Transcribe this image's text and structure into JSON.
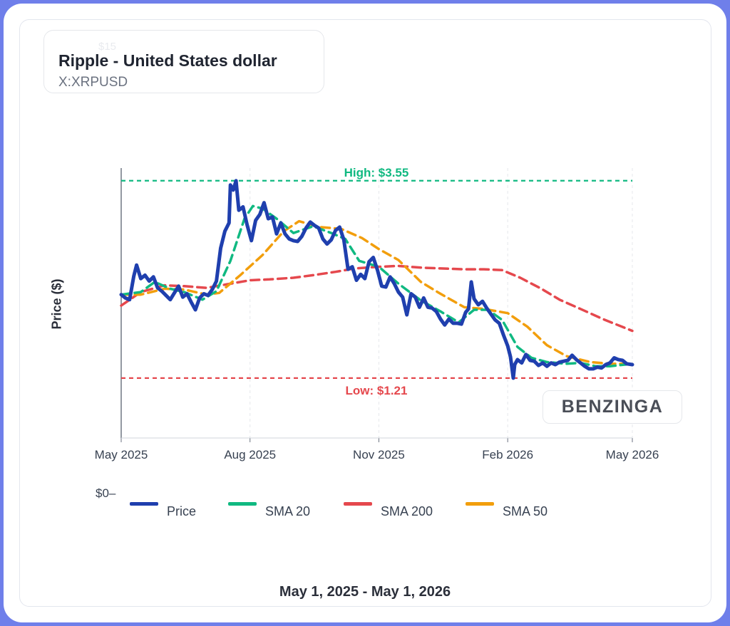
{
  "header": {
    "title": "Ripple - United States dollar",
    "ticker": "X:XRPUSD",
    "ghost_label": "$15"
  },
  "watermark": "BENZINGA",
  "date_range": "May 1, 2025 - May 1, 2026",
  "zero_tick": "$0",
  "colors": {
    "price": "#1f3fae",
    "sma20": "#10b981",
    "sma200": "#e5484d",
    "sma50": "#f29e0c",
    "high": "#10b981",
    "low": "#e5484d"
  },
  "chart_data": {
    "type": "line",
    "ylabel": "Price ($)",
    "xlabel": "",
    "x_ticks": [
      "May 2025",
      "Aug 2025",
      "Nov 2025",
      "Feb 2026",
      "May 2026"
    ],
    "x_range": [
      "2025-05-01",
      "2026-05-01"
    ],
    "ylim": [
      0.5,
      3.7
    ],
    "grid": true,
    "legend_placement": "bottom",
    "annotations": {
      "high": {
        "label": "High: $3.55",
        "value": 3.55
      },
      "low": {
        "label": "Low: $1.21",
        "value": 1.21
      }
    },
    "series": [
      {
        "name": "Price",
        "key": "price",
        "dashed": false,
        "points": [
          [
            "2025-05-01",
            2.2
          ],
          [
            "2025-05-04",
            2.16
          ],
          [
            "2025-05-07",
            2.14
          ],
          [
            "2025-05-10",
            2.42
          ],
          [
            "2025-05-12",
            2.55
          ],
          [
            "2025-05-15",
            2.39
          ],
          [
            "2025-05-18",
            2.43
          ],
          [
            "2025-05-21",
            2.36
          ],
          [
            "2025-05-24",
            2.41
          ],
          [
            "2025-05-27",
            2.28
          ],
          [
            "2025-05-30",
            2.24
          ],
          [
            "2025-06-02",
            2.19
          ],
          [
            "2025-06-05",
            2.14
          ],
          [
            "2025-06-08",
            2.22
          ],
          [
            "2025-06-11",
            2.3
          ],
          [
            "2025-06-14",
            2.17
          ],
          [
            "2025-06-17",
            2.21
          ],
          [
            "2025-06-20",
            2.11
          ],
          [
            "2025-06-23",
            2.02
          ],
          [
            "2025-06-26",
            2.16
          ],
          [
            "2025-06-29",
            2.21
          ],
          [
            "2025-07-02",
            2.19
          ],
          [
            "2025-07-05",
            2.26
          ],
          [
            "2025-07-08",
            2.36
          ],
          [
            "2025-07-11",
            2.75
          ],
          [
            "2025-07-14",
            2.95
          ],
          [
            "2025-07-17",
            3.05
          ],
          [
            "2025-07-18",
            3.5
          ],
          [
            "2025-07-20",
            3.44
          ],
          [
            "2025-07-22",
            3.55
          ],
          [
            "2025-07-24",
            3.2
          ],
          [
            "2025-07-27",
            3.24
          ],
          [
            "2025-07-30",
            3.02
          ],
          [
            "2025-08-02",
            2.84
          ],
          [
            "2025-08-05",
            3.08
          ],
          [
            "2025-08-08",
            3.15
          ],
          [
            "2025-08-11",
            3.29
          ],
          [
            "2025-08-14",
            3.1
          ],
          [
            "2025-08-17",
            3.12
          ],
          [
            "2025-08-20",
            2.92
          ],
          [
            "2025-08-23",
            3.05
          ],
          [
            "2025-08-26",
            2.92
          ],
          [
            "2025-08-29",
            2.86
          ],
          [
            "2025-09-01",
            2.84
          ],
          [
            "2025-09-04",
            2.83
          ],
          [
            "2025-09-07",
            2.89
          ],
          [
            "2025-09-10",
            2.99
          ],
          [
            "2025-09-13",
            3.06
          ],
          [
            "2025-09-16",
            3.02
          ],
          [
            "2025-09-19",
            2.99
          ],
          [
            "2025-09-22",
            2.86
          ],
          [
            "2025-09-25",
            2.8
          ],
          [
            "2025-09-28",
            2.85
          ],
          [
            "2025-10-01",
            2.96
          ],
          [
            "2025-10-04",
            3.0
          ],
          [
            "2025-10-07",
            2.85
          ],
          [
            "2025-10-10",
            2.5
          ],
          [
            "2025-10-13",
            2.53
          ],
          [
            "2025-10-16",
            2.37
          ],
          [
            "2025-10-19",
            2.44
          ],
          [
            "2025-10-22",
            2.39
          ],
          [
            "2025-10-25",
            2.59
          ],
          [
            "2025-10-28",
            2.64
          ],
          [
            "2025-10-31",
            2.49
          ],
          [
            "2025-11-03",
            2.3
          ],
          [
            "2025-11-06",
            2.29
          ],
          [
            "2025-11-09",
            2.41
          ],
          [
            "2025-11-12",
            2.33
          ],
          [
            "2025-11-15",
            2.23
          ],
          [
            "2025-11-18",
            2.17
          ],
          [
            "2025-11-21",
            1.96
          ],
          [
            "2025-11-24",
            2.21
          ],
          [
            "2025-11-27",
            2.17
          ],
          [
            "2025-11-30",
            2.05
          ],
          [
            "2025-12-03",
            2.16
          ],
          [
            "2025-12-06",
            2.05
          ],
          [
            "2025-12-09",
            2.04
          ],
          [
            "2025-12-12",
            2.0
          ],
          [
            "2025-12-15",
            1.91
          ],
          [
            "2025-12-18",
            1.84
          ],
          [
            "2025-12-21",
            1.91
          ],
          [
            "2025-12-24",
            1.86
          ],
          [
            "2025-12-27",
            1.86
          ],
          [
            "2025-12-30",
            1.85
          ],
          [
            "2026-01-02",
            1.99
          ],
          [
            "2026-01-04",
            2.03
          ],
          [
            "2026-01-06",
            2.35
          ],
          [
            "2026-01-08",
            2.15
          ],
          [
            "2026-01-11",
            2.08
          ],
          [
            "2026-01-14",
            2.12
          ],
          [
            "2026-01-17",
            2.04
          ],
          [
            "2026-01-20",
            1.97
          ],
          [
            "2026-01-23",
            1.9
          ],
          [
            "2026-01-26",
            1.86
          ],
          [
            "2026-01-29",
            1.72
          ],
          [
            "2026-02-01",
            1.59
          ],
          [
            "2026-02-03",
            1.46
          ],
          [
            "2026-02-05",
            1.21
          ],
          [
            "2026-02-06",
            1.37
          ],
          [
            "2026-02-08",
            1.43
          ],
          [
            "2026-02-11",
            1.39
          ],
          [
            "2026-02-14",
            1.49
          ],
          [
            "2026-02-17",
            1.42
          ],
          [
            "2026-02-20",
            1.41
          ],
          [
            "2026-02-23",
            1.36
          ],
          [
            "2026-02-26",
            1.39
          ],
          [
            "2026-03-01",
            1.35
          ],
          [
            "2026-03-04",
            1.39
          ],
          [
            "2026-03-07",
            1.37
          ],
          [
            "2026-03-10",
            1.4
          ],
          [
            "2026-03-13",
            1.41
          ],
          [
            "2026-03-16",
            1.42
          ],
          [
            "2026-03-19",
            1.48
          ],
          [
            "2026-03-22",
            1.43
          ],
          [
            "2026-03-25",
            1.39
          ],
          [
            "2026-03-28",
            1.35
          ],
          [
            "2026-03-31",
            1.32
          ],
          [
            "2026-04-03",
            1.32
          ],
          [
            "2026-04-06",
            1.34
          ],
          [
            "2026-04-09",
            1.33
          ],
          [
            "2026-04-12",
            1.37
          ],
          [
            "2026-04-15",
            1.39
          ],
          [
            "2026-04-18",
            1.45
          ],
          [
            "2026-04-21",
            1.43
          ],
          [
            "2026-04-24",
            1.42
          ],
          [
            "2026-04-27",
            1.38
          ],
          [
            "2026-05-01",
            1.37
          ]
        ]
      },
      {
        "name": "SMA 20",
        "key": "sma20",
        "dashed": true,
        "points": [
          [
            "2025-05-01",
            2.2
          ],
          [
            "2025-05-15",
            2.23
          ],
          [
            "2025-05-25",
            2.35
          ],
          [
            "2025-06-05",
            2.27
          ],
          [
            "2025-06-15",
            2.23
          ],
          [
            "2025-06-28",
            2.14
          ],
          [
            "2025-07-08",
            2.24
          ],
          [
            "2025-07-18",
            2.6
          ],
          [
            "2025-07-28",
            3.1
          ],
          [
            "2025-08-03",
            3.25
          ],
          [
            "2025-08-10",
            3.22
          ],
          [
            "2025-08-20",
            3.1
          ],
          [
            "2025-09-01",
            2.93
          ],
          [
            "2025-09-15",
            3.01
          ],
          [
            "2025-09-28",
            2.93
          ],
          [
            "2025-10-08",
            2.86
          ],
          [
            "2025-10-18",
            2.6
          ],
          [
            "2025-11-01",
            2.53
          ],
          [
            "2025-11-15",
            2.33
          ],
          [
            "2025-12-01",
            2.13
          ],
          [
            "2025-12-15",
            2.0
          ],
          [
            "2025-12-28",
            1.87
          ],
          [
            "2026-01-08",
            2.02
          ],
          [
            "2026-01-18",
            2.02
          ],
          [
            "2026-01-28",
            1.9
          ],
          [
            "2026-02-08",
            1.58
          ],
          [
            "2026-02-18",
            1.45
          ],
          [
            "2026-03-01",
            1.4
          ],
          [
            "2026-03-15",
            1.38
          ],
          [
            "2026-03-25",
            1.39
          ],
          [
            "2026-04-05",
            1.35
          ],
          [
            "2026-04-15",
            1.35
          ],
          [
            "2026-05-01",
            1.38
          ]
        ]
      },
      {
        "name": "SMA 200",
        "key": "sma200",
        "dashed": true,
        "points": [
          [
            "2025-05-01",
            2.07
          ],
          [
            "2025-05-15",
            2.23
          ],
          [
            "2025-06-01",
            2.31
          ],
          [
            "2025-06-15",
            2.3
          ],
          [
            "2025-07-01",
            2.28
          ],
          [
            "2025-07-15",
            2.32
          ],
          [
            "2025-08-01",
            2.37
          ],
          [
            "2025-08-15",
            2.38
          ],
          [
            "2025-09-01",
            2.4
          ],
          [
            "2025-09-15",
            2.43
          ],
          [
            "2025-10-01",
            2.47
          ],
          [
            "2025-10-15",
            2.51
          ],
          [
            "2025-11-01",
            2.53
          ],
          [
            "2025-11-15",
            2.54
          ],
          [
            "2025-12-01",
            2.52
          ],
          [
            "2025-12-15",
            2.51
          ],
          [
            "2026-01-01",
            2.5
          ],
          [
            "2026-01-15",
            2.5
          ],
          [
            "2026-01-28",
            2.49
          ],
          [
            "2026-02-10",
            2.4
          ],
          [
            "2026-02-25",
            2.27
          ],
          [
            "2026-03-10",
            2.14
          ],
          [
            "2026-03-25",
            2.03
          ],
          [
            "2026-04-10",
            1.91
          ],
          [
            "2026-05-01",
            1.77
          ]
        ]
      },
      {
        "name": "SMA 50",
        "key": "sma50",
        "dashed": true,
        "points": [
          [
            "2025-05-01",
            2.2
          ],
          [
            "2025-05-15",
            2.2
          ],
          [
            "2025-06-01",
            2.27
          ],
          [
            "2025-06-15",
            2.26
          ],
          [
            "2025-07-01",
            2.2
          ],
          [
            "2025-07-10",
            2.22
          ],
          [
            "2025-07-25",
            2.43
          ],
          [
            "2025-08-10",
            2.67
          ],
          [
            "2025-08-25",
            2.95
          ],
          [
            "2025-09-05",
            3.07
          ],
          [
            "2025-09-20",
            3.0
          ],
          [
            "2025-10-05",
            2.98
          ],
          [
            "2025-10-20",
            2.87
          ],
          [
            "2025-11-01",
            2.74
          ],
          [
            "2025-11-15",
            2.61
          ],
          [
            "2025-12-01",
            2.35
          ],
          [
            "2025-12-15",
            2.21
          ],
          [
            "2026-01-01",
            2.05
          ],
          [
            "2026-01-15",
            2.03
          ],
          [
            "2026-02-01",
            1.98
          ],
          [
            "2026-02-15",
            1.82
          ],
          [
            "2026-03-01",
            1.6
          ],
          [
            "2026-03-15",
            1.47
          ],
          [
            "2026-04-01",
            1.4
          ],
          [
            "2026-04-15",
            1.38
          ],
          [
            "2026-05-01",
            1.38
          ]
        ]
      }
    ]
  }
}
